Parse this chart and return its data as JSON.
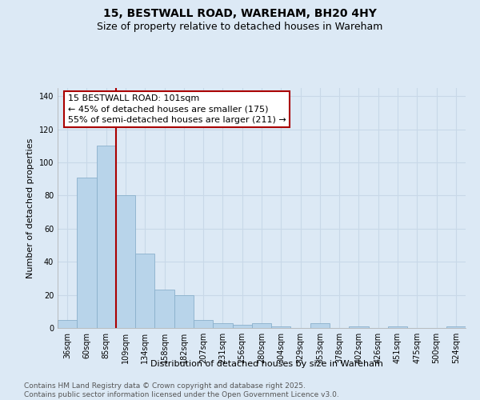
{
  "title": "15, BESTWALL ROAD, WAREHAM, BH20 4HY",
  "subtitle": "Size of property relative to detached houses in Wareham",
  "xlabel": "Distribution of detached houses by size in Wareham",
  "ylabel": "Number of detached properties",
  "categories": [
    "36sqm",
    "60sqm",
    "85sqm",
    "109sqm",
    "134sqm",
    "158sqm",
    "182sqm",
    "207sqm",
    "231sqm",
    "256sqm",
    "280sqm",
    "304sqm",
    "329sqm",
    "353sqm",
    "378sqm",
    "402sqm",
    "426sqm",
    "451sqm",
    "475sqm",
    "500sqm",
    "524sqm"
  ],
  "values": [
    5,
    91,
    110,
    80,
    45,
    23,
    20,
    5,
    3,
    2,
    3,
    1,
    0,
    3,
    0,
    1,
    0,
    1,
    0,
    0,
    1
  ],
  "bar_color": "#b8d4ea",
  "bar_edge_color": "#8ab0cc",
  "vline_x": 2.5,
  "vline_color": "#aa0000",
  "annotation_box_text": "15 BESTWALL ROAD: 101sqm\n← 45% of detached houses are smaller (175)\n55% of semi-detached houses are larger (211) →",
  "ylim": [
    0,
    145
  ],
  "yticks": [
    0,
    20,
    40,
    60,
    80,
    100,
    120,
    140
  ],
  "footer_text": "Contains HM Land Registry data © Crown copyright and database right 2025.\nContains public sector information licensed under the Open Government Licence v3.0.",
  "bg_color": "#dce9f5",
  "plot_bg_color": "#dce9f5",
  "grid_color": "#c8d8e8",
  "title_fontsize": 10,
  "subtitle_fontsize": 9,
  "axis_label_fontsize": 8,
  "tick_fontsize": 7,
  "annotation_fontsize": 8,
  "footer_fontsize": 6.5
}
